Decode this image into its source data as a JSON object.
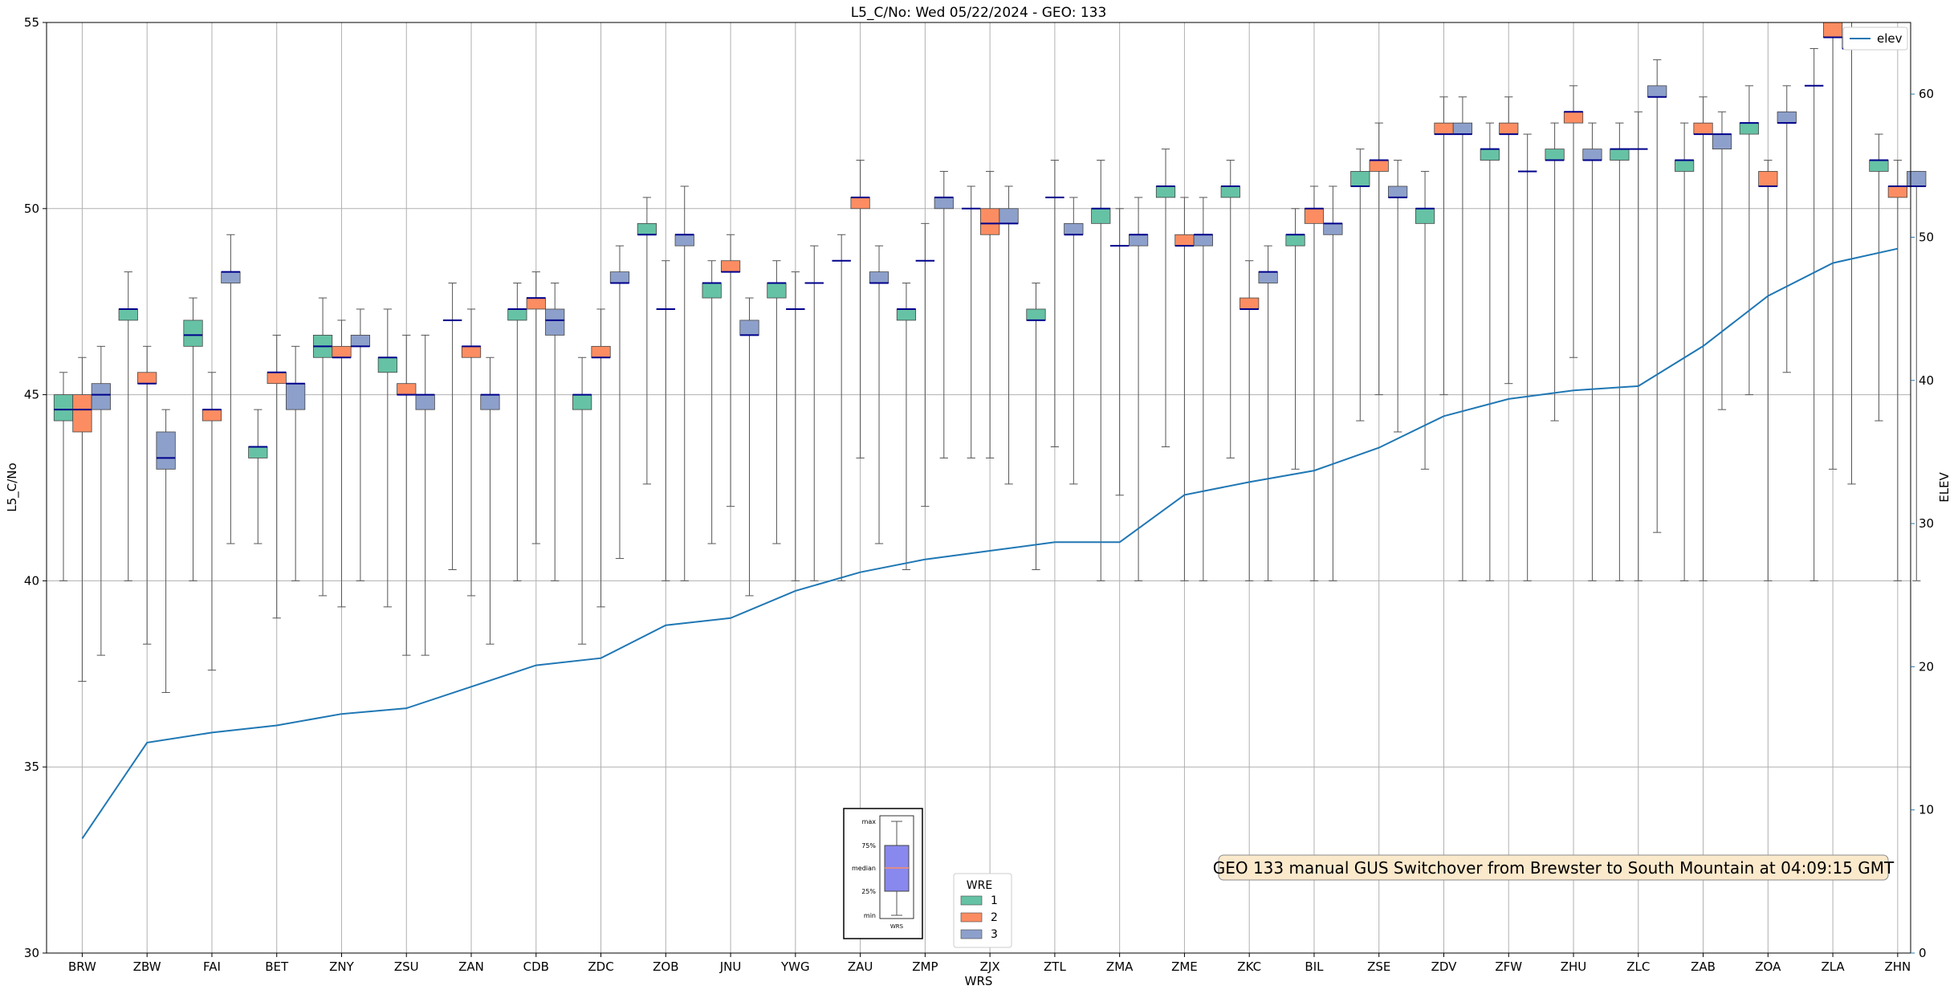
{
  "chart_data": {
    "type": "box",
    "title": "L5_C/No: Wed 05/22/2024 - GEO: 133",
    "xlabel": "WRS",
    "ylabel": "L5_C/No",
    "y2label": "ELEV",
    "ylim": [
      30,
      55
    ],
    "y2lim": [
      0,
      65
    ],
    "yticks": [
      "30",
      "35",
      "40",
      "45",
      "50",
      "55"
    ],
    "y2ticks": [
      "0",
      "10",
      "20",
      "30",
      "40",
      "50",
      "60"
    ],
    "grid": true,
    "categories": [
      "BRW",
      "ZBW",
      "FAI",
      "BET",
      "ZNY",
      "ZSU",
      "ZAN",
      "CDB",
      "ZDC",
      "ZOB",
      "JNU",
      "YWG",
      "ZAU",
      "ZMP",
      "ZJX",
      "ZTL",
      "ZMA",
      "ZME",
      "ZKC",
      "BIL",
      "ZSE",
      "ZDV",
      "ZFW",
      "ZHU",
      "ZLC",
      "ZAB",
      "ZOA",
      "ZLA",
      "ZHN"
    ],
    "series": [
      {
        "name": "1",
        "color": "#66c2a5",
        "boxes": [
          {
            "min": 40.0,
            "q1": 44.3,
            "median": 44.6,
            "q3": 45.0,
            "max": 45.6
          },
          {
            "min": 40.0,
            "q1": 47.0,
            "median": 47.3,
            "q3": 47.3,
            "max": 48.3
          },
          {
            "min": 40.0,
            "q1": 46.3,
            "median": 46.6,
            "q3": 47.0,
            "max": 47.6
          },
          {
            "min": 41.0,
            "q1": 43.3,
            "median": 43.6,
            "q3": 43.6,
            "max": 44.6
          },
          {
            "min": 39.6,
            "q1": 46.0,
            "median": 46.3,
            "q3": 46.6,
            "max": 47.6
          },
          {
            "min": 39.3,
            "q1": 45.6,
            "median": 46.0,
            "q3": 46.0,
            "max": 47.3
          },
          {
            "min": 40.3,
            "q1": 47.0,
            "median": 47.0,
            "q3": 47.0,
            "max": 48.0
          },
          {
            "min": 40.0,
            "q1": 47.0,
            "median": 47.3,
            "q3": 47.3,
            "max": 48.0
          },
          {
            "min": 38.3,
            "q1": 44.6,
            "median": 45.0,
            "q3": 45.0,
            "max": 46.0
          },
          {
            "min": 42.6,
            "q1": 49.3,
            "median": 49.3,
            "q3": 49.6,
            "max": 50.3
          },
          {
            "min": 41.0,
            "q1": 47.6,
            "median": 48.0,
            "q3": 48.0,
            "max": 48.6
          },
          {
            "min": 41.0,
            "q1": 47.6,
            "median": 48.0,
            "q3": 48.0,
            "max": 48.6
          },
          {
            "min": 40.0,
            "q1": 48.6,
            "median": 48.6,
            "q3": 48.6,
            "max": 49.3
          },
          {
            "min": 40.3,
            "q1": 47.0,
            "median": 47.3,
            "q3": 47.3,
            "max": 48.0
          },
          {
            "min": 43.3,
            "q1": 50.0,
            "median": 50.0,
            "q3": 50.0,
            "max": 50.6
          },
          {
            "min": 40.3,
            "q1": 47.0,
            "median": 47.0,
            "q3": 47.3,
            "max": 48.0
          },
          {
            "min": 40.0,
            "q1": 49.6,
            "median": 50.0,
            "q3": 50.0,
            "max": 51.3
          },
          {
            "min": 43.6,
            "q1": 50.3,
            "median": 50.6,
            "q3": 50.6,
            "max": 51.6
          },
          {
            "min": 43.3,
            "q1": 50.3,
            "median": 50.6,
            "q3": 50.6,
            "max": 51.3
          },
          {
            "min": 43.0,
            "q1": 49.0,
            "median": 49.3,
            "q3": 49.3,
            "max": 50.0
          },
          {
            "min": 44.3,
            "q1": 50.6,
            "median": 50.6,
            "q3": 51.0,
            "max": 51.6
          },
          {
            "min": 43.0,
            "q1": 49.6,
            "median": 50.0,
            "q3": 50.0,
            "max": 51.0
          },
          {
            "min": 40.0,
            "q1": 51.3,
            "median": 51.6,
            "q3": 51.6,
            "max": 52.3
          },
          {
            "min": 44.3,
            "q1": 51.3,
            "median": 51.3,
            "q3": 51.6,
            "max": 52.3
          },
          {
            "min": 40.0,
            "q1": 51.3,
            "median": 51.6,
            "q3": 51.6,
            "max": 52.3
          },
          {
            "min": 40.0,
            "q1": 51.0,
            "median": 51.3,
            "q3": 51.3,
            "max": 52.3
          },
          {
            "min": 45.0,
            "q1": 52.0,
            "median": 52.3,
            "q3": 52.3,
            "max": 53.3
          },
          {
            "min": 40.0,
            "q1": 53.3,
            "median": 53.3,
            "q3": 53.3,
            "max": 54.3
          },
          {
            "min": 44.3,
            "q1": 51.0,
            "median": 51.3,
            "q3": 51.3,
            "max": 52.0
          }
        ]
      },
      {
        "name": "2",
        "color": "#fc8d62",
        "boxes": [
          {
            "min": 37.3,
            "q1": 44.0,
            "median": 44.6,
            "q3": 45.0,
            "max": 46.0
          },
          {
            "min": 38.3,
            "q1": 45.3,
            "median": 45.3,
            "q3": 45.6,
            "max": 46.3
          },
          {
            "min": 37.6,
            "q1": 44.3,
            "median": 44.6,
            "q3": 44.6,
            "max": 45.6
          },
          {
            "min": 39.0,
            "q1": 45.3,
            "median": 45.6,
            "q3": 45.6,
            "max": 46.6
          },
          {
            "min": 39.3,
            "q1": 46.0,
            "median": 46.0,
            "q3": 46.3,
            "max": 47.0
          },
          {
            "min": 38.0,
            "q1": 45.0,
            "median": 45.0,
            "q3": 45.3,
            "max": 46.6
          },
          {
            "min": 39.6,
            "q1": 46.0,
            "median": 46.3,
            "q3": 46.3,
            "max": 47.3
          },
          {
            "min": 41.0,
            "q1": 47.3,
            "median": 47.6,
            "q3": 47.6,
            "max": 48.3
          },
          {
            "min": 39.3,
            "q1": 46.0,
            "median": 46.0,
            "q3": 46.3,
            "max": 47.3
          },
          {
            "min": 40.0,
            "q1": 47.3,
            "median": 47.3,
            "q3": 47.3,
            "max": 48.6
          },
          {
            "min": 42.0,
            "q1": 48.3,
            "median": 48.3,
            "q3": 48.6,
            "max": 49.3
          },
          {
            "min": 40.0,
            "q1": 47.3,
            "median": 47.3,
            "q3": 47.3,
            "max": 48.3
          },
          {
            "min": 43.3,
            "q1": 50.0,
            "median": 50.3,
            "q3": 50.3,
            "max": 51.3
          },
          {
            "min": 42.0,
            "q1": 48.6,
            "median": 48.6,
            "q3": 48.6,
            "max": 49.6
          },
          {
            "min": 43.3,
            "q1": 49.3,
            "median": 49.6,
            "q3": 50.0,
            "max": 51.0
          },
          {
            "min": 43.6,
            "q1": 50.3,
            "median": 50.3,
            "q3": 50.3,
            "max": 51.3
          },
          {
            "min": 42.3,
            "q1": 49.0,
            "median": 49.0,
            "q3": 49.0,
            "max": 50.0
          },
          {
            "min": 40.0,
            "q1": 49.0,
            "median": 49.0,
            "q3": 49.3,
            "max": 50.3
          },
          {
            "min": 40.0,
            "q1": 47.3,
            "median": 47.3,
            "q3": 47.6,
            "max": 48.6
          },
          {
            "min": 40.0,
            "q1": 49.6,
            "median": 50.0,
            "q3": 50.0,
            "max": 50.6
          },
          {
            "min": 45.0,
            "q1": 51.0,
            "median": 51.3,
            "q3": 51.3,
            "max": 52.3
          },
          {
            "min": 45.0,
            "q1": 52.0,
            "median": 52.0,
            "q3": 52.3,
            "max": 53.0
          },
          {
            "min": 45.3,
            "q1": 52.0,
            "median": 52.0,
            "q3": 52.3,
            "max": 53.0
          },
          {
            "min": 46.0,
            "q1": 52.3,
            "median": 52.6,
            "q3": 52.6,
            "max": 53.3
          },
          {
            "min": 40.0,
            "q1": 51.6,
            "median": 51.6,
            "q3": 51.6,
            "max": 52.6
          },
          {
            "min": 40.0,
            "q1": 52.0,
            "median": 52.0,
            "q3": 52.3,
            "max": 53.0
          },
          {
            "min": 40.0,
            "q1": 50.6,
            "median": 50.6,
            "q3": 51.0,
            "max": 51.3
          },
          {
            "min": 43.0,
            "q1": 54.6,
            "median": 54.6,
            "q3": 55.0,
            "max": 55.0
          },
          {
            "min": 40.0,
            "q1": 50.3,
            "median": 50.6,
            "q3": 50.6,
            "max": 51.3
          }
        ]
      },
      {
        "name": "3",
        "color": "#8da0cb",
        "boxes": [
          {
            "min": 38.0,
            "q1": 44.6,
            "median": 45.0,
            "q3": 45.3,
            "max": 46.3
          },
          {
            "min": 37.0,
            "q1": 43.0,
            "median": 43.3,
            "q3": 44.0,
            "max": 44.6
          },
          {
            "min": 41.0,
            "q1": 48.0,
            "median": 48.3,
            "q3": 48.3,
            "max": 49.3
          },
          {
            "min": 40.0,
            "q1": 44.6,
            "median": 45.3,
            "q3": 45.3,
            "max": 46.3
          },
          {
            "min": 40.0,
            "q1": 46.3,
            "median": 46.3,
            "q3": 46.6,
            "max": 47.3
          },
          {
            "min": 38.0,
            "q1": 44.6,
            "median": 45.0,
            "q3": 45.0,
            "max": 46.6
          },
          {
            "min": 38.3,
            "q1": 44.6,
            "median": 45.0,
            "q3": 45.0,
            "max": 46.0
          },
          {
            "min": 40.0,
            "q1": 46.6,
            "median": 47.0,
            "q3": 47.3,
            "max": 48.0
          },
          {
            "min": 40.6,
            "q1": 48.0,
            "median": 48.0,
            "q3": 48.3,
            "max": 49.0
          },
          {
            "min": 40.0,
            "q1": 49.0,
            "median": 49.3,
            "q3": 49.3,
            "max": 50.6
          },
          {
            "min": 39.6,
            "q1": 46.6,
            "median": 46.6,
            "q3": 47.0,
            "max": 47.6
          },
          {
            "min": 40.0,
            "q1": 48.0,
            "median": 48.0,
            "q3": 48.0,
            "max": 49.0
          },
          {
            "min": 41.0,
            "q1": 48.0,
            "median": 48.0,
            "q3": 48.3,
            "max": 49.0
          },
          {
            "min": 43.3,
            "q1": 50.0,
            "median": 50.3,
            "q3": 50.3,
            "max": 51.0
          },
          {
            "min": 42.6,
            "q1": 49.6,
            "median": 49.6,
            "q3": 50.0,
            "max": 50.6
          },
          {
            "min": 42.6,
            "q1": 49.3,
            "median": 49.3,
            "q3": 49.6,
            "max": 50.3
          },
          {
            "min": 40.0,
            "q1": 49.0,
            "median": 49.3,
            "q3": 49.3,
            "max": 50.3
          },
          {
            "min": 40.0,
            "q1": 49.0,
            "median": 49.3,
            "q3": 49.3,
            "max": 50.3
          },
          {
            "min": 40.0,
            "q1": 48.0,
            "median": 48.3,
            "q3": 48.3,
            "max": 49.0
          },
          {
            "min": 40.0,
            "q1": 49.3,
            "median": 49.6,
            "q3": 49.6,
            "max": 50.6
          },
          {
            "min": 44.0,
            "q1": 50.3,
            "median": 50.3,
            "q3": 50.6,
            "max": 51.3
          },
          {
            "min": 40.0,
            "q1": 52.0,
            "median": 52.0,
            "q3": 52.3,
            "max": 53.0
          },
          {
            "min": 40.0,
            "q1": 51.0,
            "median": 51.0,
            "q3": 51.0,
            "max": 52.0
          },
          {
            "min": 40.0,
            "q1": 51.3,
            "median": 51.3,
            "q3": 51.6,
            "max": 52.3
          },
          {
            "min": 41.3,
            "q1": 53.0,
            "median": 53.0,
            "q3": 53.3,
            "max": 54.0
          },
          {
            "min": 44.6,
            "q1": 51.6,
            "median": 52.0,
            "q3": 52.0,
            "max": 52.6
          },
          {
            "min": 45.6,
            "q1": 52.3,
            "median": 52.3,
            "q3": 52.6,
            "max": 53.3
          },
          {
            "min": 42.6,
            "q1": 54.3,
            "median": 54.3,
            "q3": 54.6,
            "max": 55.0
          },
          {
            "min": 40.0,
            "q1": 50.6,
            "median": 50.6,
            "q3": 51.0,
            "max": 51.0
          }
        ]
      }
    ],
    "elev": {
      "name": "elev",
      "color": "#1f77b4",
      "values": [
        8.0,
        14.7,
        15.4,
        15.9,
        16.7,
        17.1,
        18.6,
        20.1,
        20.6,
        22.9,
        23.4,
        25.3,
        26.6,
        27.5,
        28.1,
        28.7,
        28.7,
        32.0,
        32.9,
        33.7,
        35.3,
        37.5,
        38.7,
        39.3,
        39.6,
        42.4,
        45.9,
        48.2,
        49.2
      ]
    },
    "legend": {
      "title": "WRE",
      "labels": [
        "1",
        "2",
        "3"
      ],
      "placement": "bottom-center"
    },
    "elev_legend_placement": "top-right",
    "annotation": "GEO 133 manual GUS Switchover from Brewster to South Mountain at 04:09:15 GMT",
    "box_key": {
      "labels": [
        "max",
        "75%",
        "median",
        "25%",
        "min"
      ],
      "xlabel": "WRS",
      "fill": "#8888ee"
    }
  }
}
